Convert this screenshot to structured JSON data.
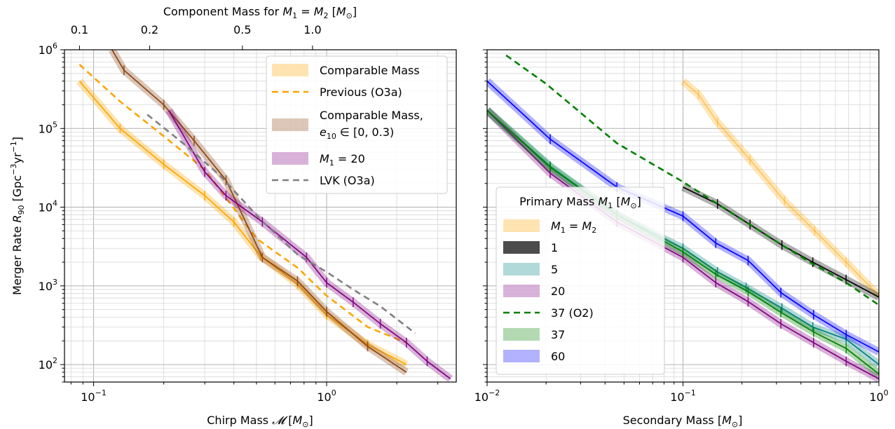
{
  "chart_data": [
    {
      "type": "line",
      "xscale": "log",
      "yscale": "log",
      "xlabel": "Chirp Mass 𝓜 [M⊙]",
      "ylabel": "Merger Rate R₉₀ [Gpc⁻³yr⁻¹]",
      "top_xlabel": "Component Mass for M₁ = M₂ [M⊙]",
      "xlim": [
        0.075,
        3.6
      ],
      "ylim": [
        60,
        1000000
      ],
      "grid": true,
      "legend_position": "top-right",
      "x_ticks": [
        {
          "value": 0.1,
          "label": "10⁻¹"
        },
        {
          "value": 1,
          "label": "10⁰"
        }
      ],
      "y_ticks": [
        {
          "value": 100,
          "label": "10²"
        },
        {
          "value": 1000,
          "label": "10³"
        },
        {
          "value": 10000,
          "label": "10⁴"
        },
        {
          "value": 100000,
          "label": "10⁵"
        },
        {
          "value": 1000000,
          "label": "10⁶"
        }
      ],
      "top_ticks": [
        {
          "value": 0.087,
          "label": "0.1"
        },
        {
          "value": 0.174,
          "label": "0.2"
        },
        {
          "value": 0.435,
          "label": "0.5"
        },
        {
          "value": 0.87,
          "label": "1.0"
        }
      ],
      "series": [
        {
          "name": "Comparable Mass",
          "style": "band",
          "color": "#ffa500",
          "x": [
            0.087,
            0.13,
            0.2,
            0.3,
            0.4,
            0.52,
            0.75,
            1.0,
            1.5,
            2.2
          ],
          "y": [
            400000,
            100000,
            35000,
            14000,
            6500,
            2400,
            1050,
            430,
            180,
            100
          ]
        },
        {
          "name": "Previous (O3a)",
          "style": "dashed",
          "color": "#ffa500",
          "x": [
            0.087,
            0.13,
            0.2,
            0.3,
            0.5,
            0.75,
            1.0,
            1.5,
            2.2
          ],
          "y": [
            650000,
            220000,
            80000,
            30000,
            4000,
            1700,
            750,
            300,
            190
          ]
        },
        {
          "name": "Comparable Mass, e₁₀ ∈ [0, 0.3)",
          "style": "band",
          "color": "#8b4513",
          "x": [
            0.12,
            0.135,
            0.2,
            0.27,
            0.37,
            0.53,
            0.75,
            1.0,
            1.5,
            2.2
          ],
          "y": [
            1000000,
            550000,
            200000,
            70000,
            22000,
            2300,
            1150,
            470,
            170,
            80
          ]
        },
        {
          "name": "M₁ = 20",
          "style": "band",
          "color": "#800080",
          "x": [
            0.21,
            0.3,
            0.37,
            0.53,
            0.82,
            1.0,
            1.3,
            1.7,
            2.2,
            2.7,
            3.4
          ],
          "y": [
            170000,
            28000,
            14000,
            6500,
            2300,
            1100,
            620,
            330,
            190,
            110,
            66
          ]
        },
        {
          "name": "LVK (O3a)",
          "style": "dashed",
          "color": "#808080",
          "x": [
            0.17,
            0.25,
            0.35,
            0.52,
            0.75,
            1.0,
            1.3,
            1.7,
            2.4
          ],
          "y": [
            150000,
            60000,
            25000,
            7000,
            2500,
            1500,
            900,
            550,
            250
          ]
        }
      ]
    },
    {
      "type": "line",
      "xscale": "log",
      "yscale": "log",
      "xlabel": "Secondary Mass [M⊙]",
      "xlim": [
        0.01,
        1.0
      ],
      "ylim": [
        60,
        1000000
      ],
      "grid": true,
      "legend_position": "lower-left",
      "legend_title": "Primary Mass M₁ [M⊙]",
      "x_ticks": [
        {
          "value": 0.01,
          "label": "10⁻²"
        },
        {
          "value": 0.1,
          "label": "10⁻¹"
        },
        {
          "value": 1,
          "label": "10⁰"
        }
      ],
      "series": [
        {
          "name": "M₁ = M₂",
          "style": "band",
          "color": "#ffa500",
          "alpha": 0.45,
          "x": [
            0.1,
            0.12,
            0.15,
            0.22,
            0.33,
            0.47,
            0.68,
            1.0
          ],
          "y": [
            400000,
            270000,
            120000,
            40000,
            12000,
            5000,
            2000,
            750
          ]
        },
        {
          "name": "1",
          "style": "band",
          "color": "#000000",
          "x": [
            0.1,
            0.15,
            0.22,
            0.32,
            0.46,
            0.68,
            1.0
          ],
          "y": [
            18000,
            11000,
            6000,
            3300,
            2000,
            1200,
            720
          ]
        },
        {
          "name": "5",
          "style": "band",
          "color": "#008080",
          "x": [
            0.01,
            0.021,
            0.046,
            0.1,
            0.15,
            0.21,
            0.32,
            0.46,
            0.68,
            1.0
          ],
          "y": [
            170000,
            33000,
            8000,
            3000,
            1500,
            950,
            520,
            300,
            210,
            100
          ]
        },
        {
          "name": "20",
          "style": "band",
          "color": "#800080",
          "x": [
            0.01,
            0.021,
            0.046,
            0.1,
            0.147,
            0.215,
            0.316,
            0.464,
            0.681,
            1.0
          ],
          "y": [
            170000,
            27000,
            6500,
            2300,
            1100,
            630,
            330,
            190,
            110,
            66
          ]
        },
        {
          "name": "37 (O2)",
          "style": "dashed",
          "color": "#008000",
          "x": [
            0.0125,
            0.02,
            0.046,
            0.1,
            0.15,
            0.22,
            0.32,
            0.46,
            0.68,
            1.0
          ],
          "y": [
            850000,
            370000,
            65000,
            21000,
            11000,
            6000,
            3300,
            1900,
            1100,
            570
          ]
        },
        {
          "name": "37",
          "style": "band",
          "color": "#008000",
          "x": [
            0.01,
            0.021,
            0.046,
            0.1,
            0.147,
            0.215,
            0.316,
            0.464,
            0.681,
            1.0
          ],
          "y": [
            170000,
            32000,
            8000,
            2700,
            1400,
            850,
            460,
            260,
            160,
            76
          ]
        },
        {
          "name": "60",
          "style": "band",
          "color": "#0000ff",
          "x": [
            0.01,
            0.021,
            0.046,
            0.1,
            0.147,
            0.215,
            0.316,
            0.464,
            0.681,
            1.0
          ],
          "y": [
            400000,
            73000,
            18000,
            7700,
            3500,
            2100,
            820,
            430,
            240,
            145
          ]
        }
      ]
    }
  ]
}
